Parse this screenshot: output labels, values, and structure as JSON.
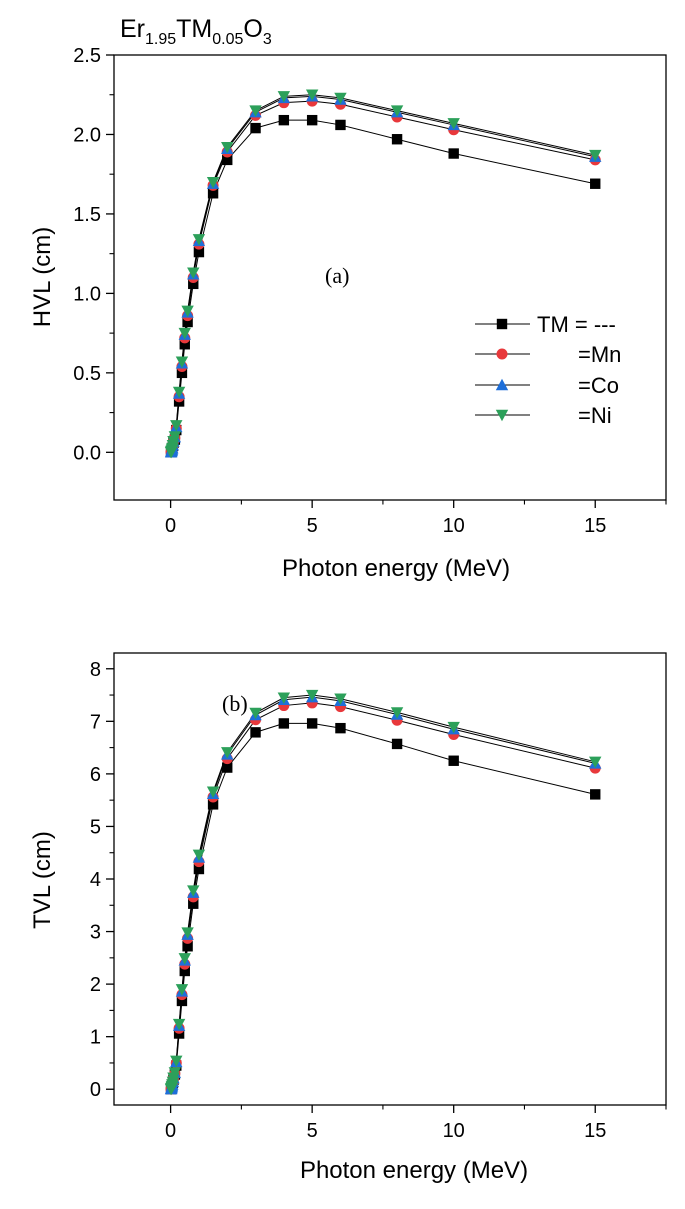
{
  "figure_title": {
    "prefix": "Er",
    "sub1": "1.95",
    "mid": "TM",
    "sub2": "0.05",
    "suffix": "O",
    "sub3": "3"
  },
  "legend": {
    "entries": [
      {
        "label": "TM = ---",
        "color": "#000000",
        "marker": "square"
      },
      {
        "label": "=Mn",
        "color": "#e8383b",
        "marker": "circle"
      },
      {
        "label": "=Co",
        "color": "#1e6fd9",
        "marker": "triangle-up"
      },
      {
        "label": "=Ni",
        "color": "#2ca05a",
        "marker": "triangle-down"
      }
    ]
  },
  "chart_data": [
    {
      "type": "line",
      "panel_label": "(a)",
      "xlabel": "Photon energy (MeV)",
      "ylabel": "HVL (cm)",
      "xlim": [
        -2.0,
        17.5
      ],
      "ylim": [
        -0.3,
        2.5
      ],
      "xticks": [
        0,
        5,
        10,
        15
      ],
      "yticks": [
        0.0,
        0.5,
        1.0,
        1.5,
        2.0,
        2.5
      ],
      "ytick_labels": [
        "0.0",
        "0.5",
        "1.0",
        "1.5",
        "2.0",
        "2.5"
      ],
      "x": [
        0.015,
        0.02,
        0.03,
        0.04,
        0.05,
        0.06,
        0.08,
        0.1,
        0.15,
        0.2,
        0.3,
        0.4,
        0.5,
        0.6,
        0.8,
        1.0,
        1.5,
        2.0,
        3.0,
        4.0,
        5.0,
        6.0,
        8.0,
        10.0,
        15.0
      ],
      "series": [
        {
          "name": "TM = ---",
          "color": "#000000",
          "marker": "square",
          "values": [
            0.001,
            0.002,
            0.006,
            0.01,
            0.016,
            0.024,
            0.04,
            0.06,
            0.08,
            0.14,
            0.32,
            0.5,
            0.68,
            0.82,
            1.06,
            1.26,
            1.63,
            1.84,
            2.04,
            2.09,
            2.09,
            2.06,
            1.97,
            1.88,
            1.69
          ]
        },
        {
          "name": "=Mn",
          "color": "#e8383b",
          "marker": "circle",
          "values": [
            0.001,
            0.002,
            0.006,
            0.01,
            0.017,
            0.025,
            0.042,
            0.065,
            0.09,
            0.15,
            0.35,
            0.54,
            0.72,
            0.86,
            1.1,
            1.31,
            1.68,
            1.89,
            2.12,
            2.2,
            2.21,
            2.19,
            2.11,
            2.03,
            1.84
          ]
        },
        {
          "name": "=Co",
          "color": "#1e6fd9",
          "marker": "triangle-up",
          "values": [
            0.001,
            0.002,
            0.007,
            0.011,
            0.018,
            0.026,
            0.044,
            0.068,
            0.095,
            0.16,
            0.37,
            0.56,
            0.74,
            0.88,
            1.12,
            1.33,
            1.69,
            1.91,
            2.14,
            2.23,
            2.24,
            2.22,
            2.14,
            2.06,
            1.86
          ]
        },
        {
          "name": "=Ni",
          "color": "#2ca05a",
          "marker": "triangle-down",
          "values": [
            0.001,
            0.002,
            0.007,
            0.011,
            0.018,
            0.027,
            0.045,
            0.07,
            0.1,
            0.17,
            0.38,
            0.57,
            0.75,
            0.89,
            1.13,
            1.34,
            1.7,
            1.92,
            2.15,
            2.24,
            2.25,
            2.23,
            2.15,
            2.07,
            1.87
          ]
        }
      ]
    },
    {
      "type": "line",
      "panel_label": "(b)",
      "xlabel": "Photon energy (MeV)",
      "ylabel": "TVL (cm)",
      "xlim": [
        -2.0,
        17.5
      ],
      "ylim": [
        -0.3,
        8.3
      ],
      "xticks": [
        0,
        5,
        10,
        15
      ],
      "yticks": [
        0,
        1,
        2,
        3,
        4,
        5,
        6,
        7,
        8
      ],
      "ytick_labels": [
        "0",
        "1",
        "2",
        "3",
        "4",
        "5",
        "6",
        "7",
        "8"
      ],
      "x": [
        0.015,
        0.02,
        0.03,
        0.04,
        0.05,
        0.06,
        0.08,
        0.1,
        0.15,
        0.2,
        0.3,
        0.4,
        0.5,
        0.6,
        0.8,
        1.0,
        1.5,
        2.0,
        3.0,
        4.0,
        5.0,
        6.0,
        8.0,
        10.0,
        15.0
      ],
      "series": [
        {
          "name": "TM = ---",
          "color": "#000000",
          "marker": "square",
          "values": [
            0.003,
            0.006,
            0.02,
            0.04,
            0.06,
            0.08,
            0.12,
            0.18,
            0.28,
            0.45,
            1.06,
            1.68,
            2.25,
            2.72,
            3.53,
            4.19,
            5.42,
            6.12,
            6.79,
            6.96,
            6.96,
            6.87,
            6.57,
            6.25,
            5.61
          ]
        },
        {
          "name": "=Mn",
          "color": "#e8383b",
          "marker": "circle",
          "values": [
            0.003,
            0.006,
            0.02,
            0.04,
            0.06,
            0.08,
            0.13,
            0.2,
            0.3,
            0.5,
            1.16,
            1.8,
            2.38,
            2.87,
            3.66,
            4.33,
            5.56,
            6.29,
            7.03,
            7.3,
            7.35,
            7.28,
            7.02,
            6.75,
            6.11
          ]
        },
        {
          "name": "=Co",
          "color": "#1e6fd9",
          "marker": "triangle-up",
          "values": [
            0.003,
            0.007,
            0.02,
            0.04,
            0.06,
            0.09,
            0.14,
            0.21,
            0.31,
            0.52,
            1.21,
            1.86,
            2.45,
            2.94,
            3.74,
            4.41,
            5.62,
            6.37,
            7.12,
            7.41,
            7.46,
            7.39,
            7.13,
            6.85,
            6.2
          ]
        },
        {
          "name": "=Ni",
          "color": "#2ca05a",
          "marker": "triangle-down",
          "values": [
            0.003,
            0.007,
            0.02,
            0.04,
            0.06,
            0.09,
            0.14,
            0.22,
            0.32,
            0.54,
            1.24,
            1.9,
            2.49,
            2.98,
            3.78,
            4.46,
            5.66,
            6.41,
            7.16,
            7.45,
            7.5,
            7.43,
            7.17,
            6.89,
            6.23
          ]
        }
      ]
    }
  ]
}
